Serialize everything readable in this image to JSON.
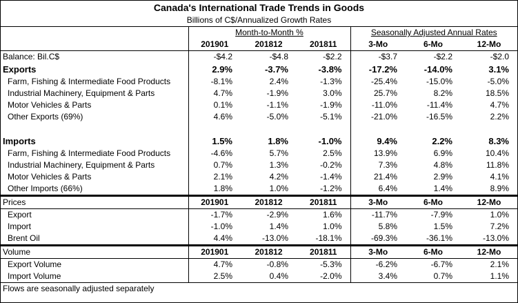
{
  "title": "Canada's International Trade Trends in Goods",
  "subtitle": "Billions of C$/Annualized Growth Rates",
  "group_headers": {
    "mom": "Month-to-Month %",
    "saar": "Seasonally Adjusted Annual Rates"
  },
  "col_headers": [
    "201901",
    "201812",
    "201811",
    "3-Mo",
    "6-Mo",
    "12-Mo"
  ],
  "balance": {
    "label": "Balance: Bil.C$",
    "values": [
      "-$4.2",
      "-$4.8",
      "-$2.2",
      "-$3.7",
      "-$2.2",
      "-$2.0"
    ]
  },
  "exports": {
    "label": "Exports",
    "values": [
      "2.9%",
      "-3.7%",
      "-3.8%",
      "-17.2%",
      "-14.0%",
      "3.1%"
    ],
    "rows": [
      {
        "label": "Farm, Fishing & Intermediate Food Products",
        "values": [
          "-8.1%",
          "2.4%",
          "-1.3%",
          "-25.4%",
          "-15.0%",
          "-5.0%"
        ]
      },
      {
        "label": "Industrial Machinery, Equipment & Parts",
        "values": [
          "4.7%",
          "-1.9%",
          "3.0%",
          "25.7%",
          "8.2%",
          "18.5%"
        ]
      },
      {
        "label": "Motor Vehicles & Parts",
        "values": [
          "0.1%",
          "-1.1%",
          "-1.9%",
          "-11.0%",
          "-11.4%",
          "4.7%"
        ]
      },
      {
        "label": "Other Exports (69%)",
        "values": [
          "4.6%",
          "-5.0%",
          "-5.1%",
          "-21.0%",
          "-16.5%",
          "2.2%"
        ]
      }
    ]
  },
  "imports": {
    "label": "Imports",
    "values": [
      "1.5%",
      "1.8%",
      "-1.0%",
      "9.4%",
      "2.2%",
      "8.3%"
    ],
    "rows": [
      {
        "label": "Farm, Fishing & Intermediate Food Products",
        "values": [
          "-4.6%",
          "5.7%",
          "2.5%",
          "13.9%",
          "6.9%",
          "10.4%"
        ]
      },
      {
        "label": "Industrial Machinery, Equipment & Parts",
        "values": [
          "0.7%",
          "1.3%",
          "-0.2%",
          "7.3%",
          "4.8%",
          "11.8%"
        ]
      },
      {
        "label": "Motor Vehicles & Parts",
        "values": [
          "2.1%",
          "4.2%",
          "-1.4%",
          "21.4%",
          "2.9%",
          "4.1%"
        ]
      },
      {
        "label": "Other Imports (66%)",
        "values": [
          "1.8%",
          "1.0%",
          "-1.2%",
          "6.4%",
          "1.4%",
          "8.9%"
        ]
      }
    ]
  },
  "prices": {
    "label": "Prices",
    "headers": [
      "201901",
      "201812",
      "201811",
      "3-Mo",
      "6-Mo",
      "12-Mo"
    ],
    "rows": [
      {
        "label": "Export",
        "values": [
          "-1.7%",
          "-2.9%",
          "1.6%",
          "-11.7%",
          "-7.9%",
          "1.0%"
        ]
      },
      {
        "label": "Import",
        "values": [
          "-1.0%",
          "1.4%",
          "1.0%",
          "5.8%",
          "1.5%",
          "7.2%"
        ]
      },
      {
        "label": "Brent Oil",
        "values": [
          "4.4%",
          "-13.0%",
          "-18.1%",
          "-69.3%",
          "-36.1%",
          "-13.0%"
        ]
      }
    ]
  },
  "volume": {
    "label": "Volume",
    "headers": [
      "201901",
      "201812",
      "201811",
      "3-Mo",
      "6-Mo",
      "12-Mo"
    ],
    "rows": [
      {
        "label": "Export Volume",
        "values": [
          "4.7%",
          "-0.8%",
          "-5.3%",
          "-6.2%",
          "-6.7%",
          "2.1%"
        ]
      },
      {
        "label": "Import Volume",
        "values": [
          "2.5%",
          "0.4%",
          "-2.0%",
          "3.4%",
          "0.7%",
          "1.1%"
        ]
      }
    ]
  },
  "footnote": "Flows are seasonally adjusted separately"
}
